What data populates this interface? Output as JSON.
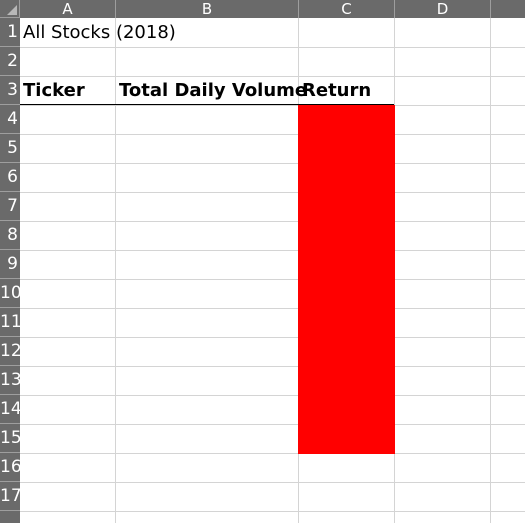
{
  "columns": [
    "A",
    "B",
    "C",
    "D"
  ],
  "rows": [
    "1",
    "2",
    "3",
    "4",
    "5",
    "6",
    "7",
    "8",
    "9",
    "10",
    "11",
    "12",
    "13",
    "14",
    "15",
    "16",
    "17"
  ],
  "cells": {
    "A1": "All Stocks (2018)",
    "A3": "Ticker",
    "B3": "Total Daily Volume",
    "C3": "Return"
  },
  "fill": {
    "range": "C4:C15",
    "color": "#ff0000"
  }
}
